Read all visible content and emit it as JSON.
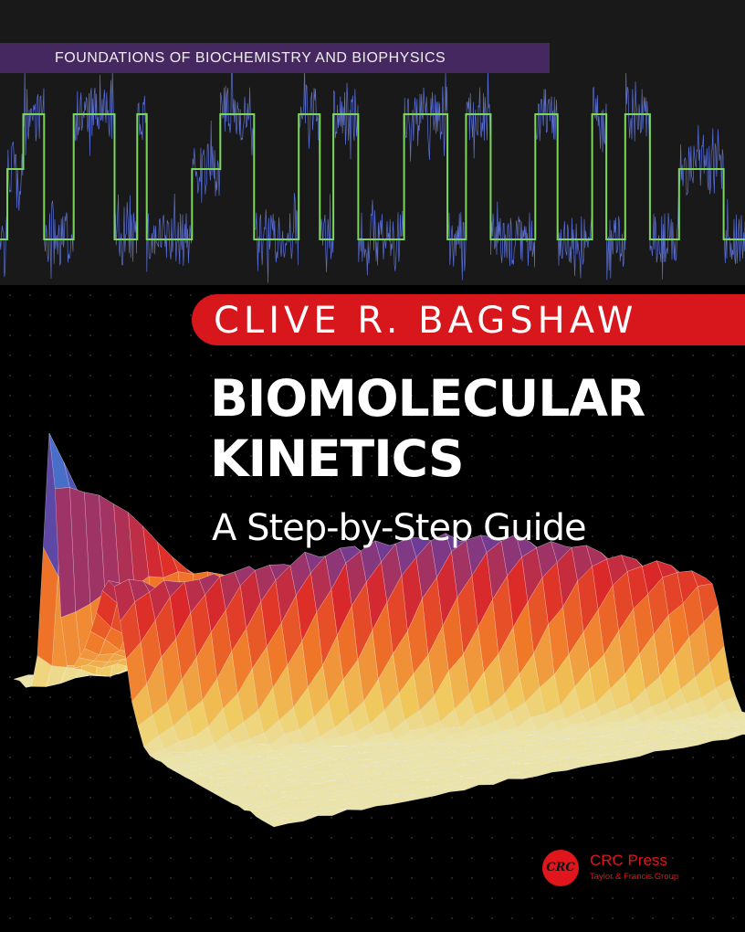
{
  "series_title": "FOUNDATIONS OF BIOCHEMISTRY AND BIOPHYSICS",
  "author": "CLIVE R. BAGSHAW",
  "title_line1": "BIOMOLECULAR",
  "title_line2": "KINETICS",
  "subtitle": "A Step-by-Step Guide",
  "publisher": {
    "logo_text": "CRC",
    "name": "CRC Press",
    "group": "Taylor & Francis Group"
  },
  "colors": {
    "series_band": "#45285f",
    "author_band": "#d8171c",
    "trace_noise": "#5a6fd6",
    "trace_steps": "#7bd65a",
    "publisher": "#e0161c"
  }
}
